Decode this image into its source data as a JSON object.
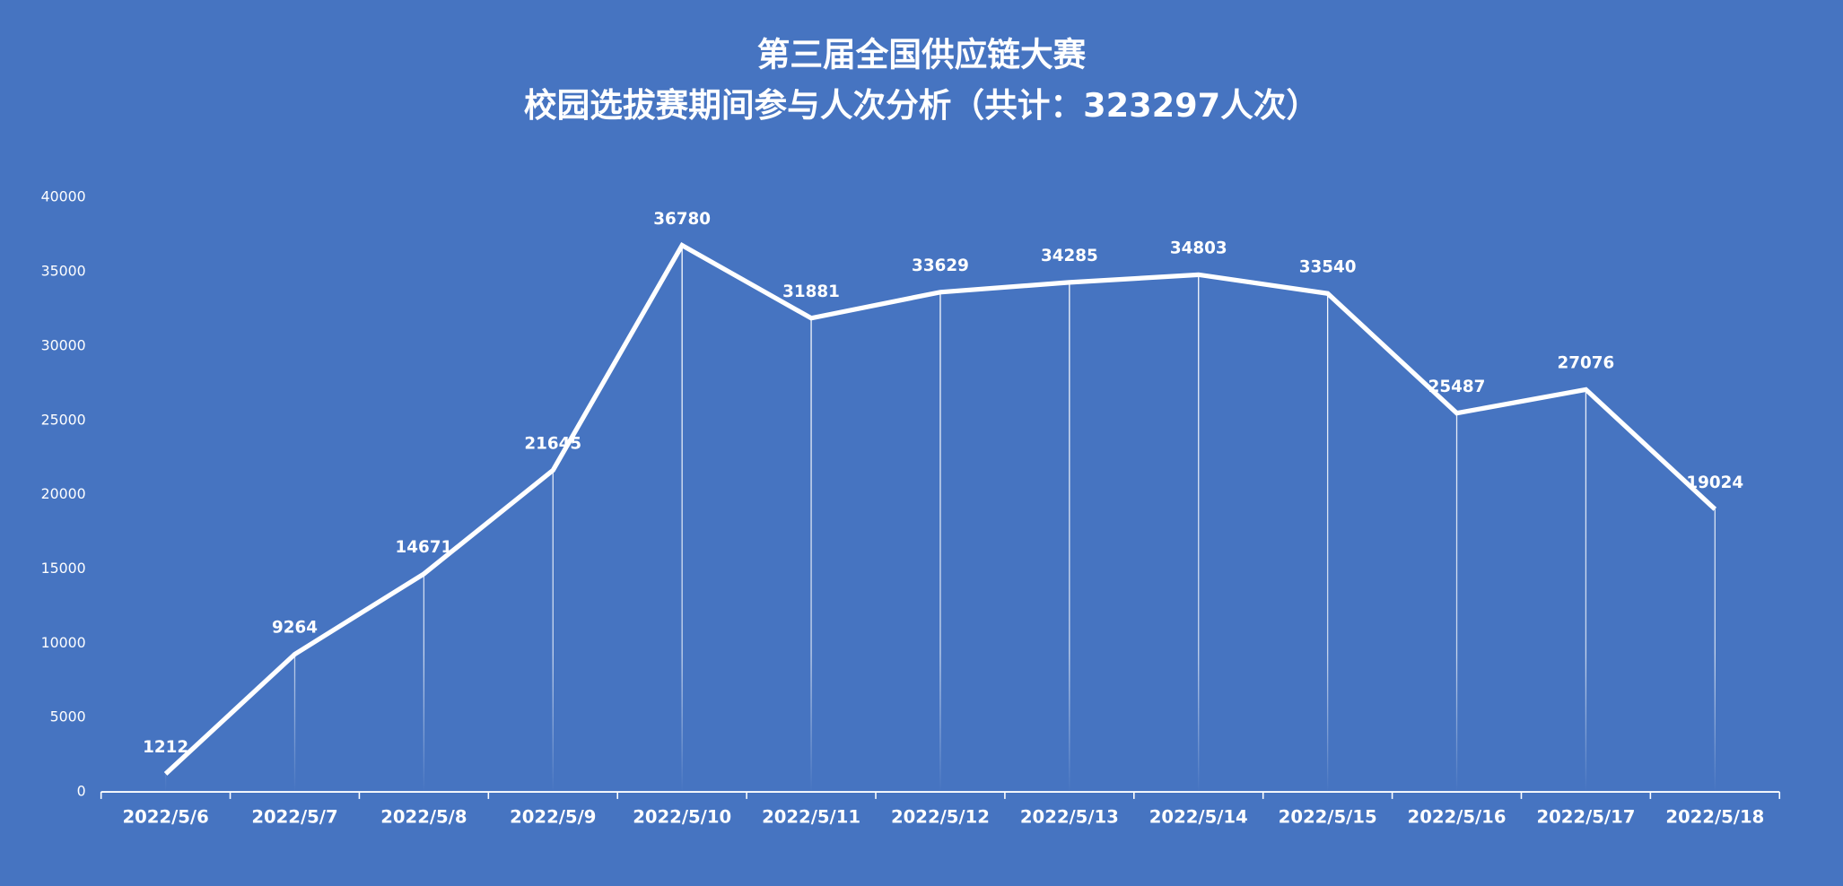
{
  "chart_data": {
    "type": "line",
    "title": [
      "第三届全国供应链大赛",
      "校园选拔赛期间参与人次分析（共计：323297人次）"
    ],
    "categories": [
      "2022/5/6",
      "2022/5/7",
      "2022/5/8",
      "2022/5/9",
      "2022/5/10",
      "2022/5/11",
      "2022/5/12",
      "2022/5/13",
      "2022/5/14",
      "2022/5/15",
      "2022/5/16",
      "2022/5/17",
      "2022/5/18"
    ],
    "values": [
      1212,
      9264,
      14671,
      21645,
      36780,
      31881,
      33629,
      34285,
      34803,
      33540,
      25487,
      27076,
      19024
    ],
    "color": "#ffffff",
    "ylim": [
      0,
      40000
    ],
    "yticks": [
      0,
      5000,
      10000,
      15000,
      20000,
      25000,
      30000,
      35000,
      40000
    ],
    "grid": false,
    "drop_lines": true
  }
}
